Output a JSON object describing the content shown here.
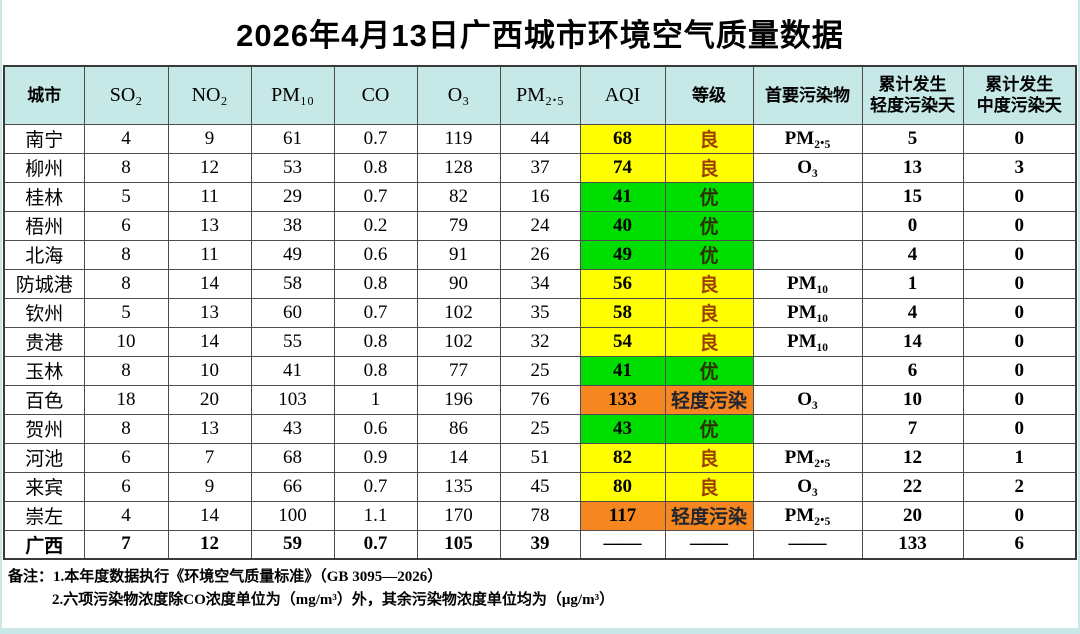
{
  "title": "2026年4月13日广西城市环境空气质量数据",
  "table": {
    "columns": [
      "城市",
      "SO₂",
      "NO₂",
      "PM₁₀",
      "CO",
      "O₃",
      "PM₂.₅",
      "AQI",
      "等级",
      "首要污染物",
      "累计发生\n轻度污染天",
      "累计发生\n中度污染天"
    ],
    "rows": [
      {
        "city": "南宁",
        "so2": "4",
        "no2": "9",
        "pm10": "61",
        "co": "0.7",
        "o3": "119",
        "pm25": "44",
        "aqi": "68",
        "grade": "良",
        "grade_type": "liang",
        "primary": "PM₂.₅",
        "light_days": "5",
        "medium_days": "0"
      },
      {
        "city": "柳州",
        "so2": "8",
        "no2": "12",
        "pm10": "53",
        "co": "0.8",
        "o3": "128",
        "pm25": "37",
        "aqi": "74",
        "grade": "良",
        "grade_type": "liang",
        "primary": "O₃",
        "light_days": "13",
        "medium_days": "3"
      },
      {
        "city": "桂林",
        "so2": "5",
        "no2": "11",
        "pm10": "29",
        "co": "0.7",
        "o3": "82",
        "pm25": "16",
        "aqi": "41",
        "grade": "优",
        "grade_type": "you",
        "primary": "",
        "light_days": "15",
        "medium_days": "0"
      },
      {
        "city": "梧州",
        "so2": "6",
        "no2": "13",
        "pm10": "38",
        "co": "0.2",
        "o3": "79",
        "pm25": "24",
        "aqi": "40",
        "grade": "优",
        "grade_type": "you",
        "primary": "",
        "light_days": "0",
        "medium_days": "0"
      },
      {
        "city": "北海",
        "so2": "8",
        "no2": "11",
        "pm10": "49",
        "co": "0.6",
        "o3": "91",
        "pm25": "26",
        "aqi": "49",
        "grade": "优",
        "grade_type": "you",
        "primary": "",
        "light_days": "4",
        "medium_days": "0"
      },
      {
        "city": "防城港",
        "so2": "8",
        "no2": "14",
        "pm10": "58",
        "co": "0.8",
        "o3": "90",
        "pm25": "34",
        "aqi": "56",
        "grade": "良",
        "grade_type": "liang",
        "primary": "PM₁₀",
        "light_days": "1",
        "medium_days": "0"
      },
      {
        "city": "钦州",
        "so2": "5",
        "no2": "13",
        "pm10": "60",
        "co": "0.7",
        "o3": "102",
        "pm25": "35",
        "aqi": "58",
        "grade": "良",
        "grade_type": "liang",
        "primary": "PM₁₀",
        "light_days": "4",
        "medium_days": "0"
      },
      {
        "city": "贵港",
        "so2": "10",
        "no2": "14",
        "pm10": "55",
        "co": "0.8",
        "o3": "102",
        "pm25": "32",
        "aqi": "54",
        "grade": "良",
        "grade_type": "liang",
        "primary": "PM₁₀",
        "light_days": "14",
        "medium_days": "0"
      },
      {
        "city": "玉林",
        "so2": "8",
        "no2": "10",
        "pm10": "41",
        "co": "0.8",
        "o3": "77",
        "pm25": "25",
        "aqi": "41",
        "grade": "优",
        "grade_type": "you",
        "primary": "",
        "light_days": "6",
        "medium_days": "0"
      },
      {
        "city": "百色",
        "so2": "18",
        "no2": "20",
        "pm10": "103",
        "co": "1",
        "o3": "196",
        "pm25": "76",
        "aqi": "133",
        "grade": "轻度污染",
        "grade_type": "qingdu",
        "primary": "O₃",
        "light_days": "10",
        "medium_days": "0"
      },
      {
        "city": "贺州",
        "so2": "8",
        "no2": "13",
        "pm10": "43",
        "co": "0.6",
        "o3": "86",
        "pm25": "25",
        "aqi": "43",
        "grade": "优",
        "grade_type": "you",
        "primary": "",
        "light_days": "7",
        "medium_days": "0"
      },
      {
        "city": "河池",
        "so2": "6",
        "no2": "7",
        "pm10": "68",
        "co": "0.9",
        "o3": "14",
        "pm25": "51",
        "aqi": "82",
        "grade": "良",
        "grade_type": "liang",
        "primary": "PM₂.₅",
        "light_days": "12",
        "medium_days": "1"
      },
      {
        "city": "来宾",
        "so2": "6",
        "no2": "9",
        "pm10": "66",
        "co": "0.7",
        "o3": "135",
        "pm25": "45",
        "aqi": "80",
        "grade": "良",
        "grade_type": "liang",
        "primary": "O₃",
        "light_days": "22",
        "medium_days": "2"
      },
      {
        "city": "崇左",
        "so2": "4",
        "no2": "14",
        "pm10": "100",
        "co": "1.1",
        "o3": "170",
        "pm25": "78",
        "aqi": "117",
        "grade": "轻度污染",
        "grade_type": "qingdu",
        "primary": "PM₂.₅",
        "light_days": "20",
        "medium_days": "0"
      },
      {
        "city": "广西",
        "so2": "7",
        "no2": "12",
        "pm10": "59",
        "co": "0.7",
        "o3": "105",
        "pm25": "39",
        "aqi": "——",
        "grade": "——",
        "grade_type": "none",
        "primary": "——",
        "light_days": "133",
        "medium_days": "6",
        "summary": true
      }
    ]
  },
  "grade_colors": {
    "you": {
      "bg": "#00dd00",
      "fg": "#2f2f00"
    },
    "liang": {
      "bg": "#ffff00",
      "fg": "#9c3f00"
    },
    "qingdu": {
      "bg": "#f6861f",
      "fg": "#20242e"
    },
    "none": {
      "bg": "",
      "fg": ""
    }
  },
  "header_bg": "#c6e9e7",
  "notes": {
    "label": "备注：",
    "line1": "1.本年度数据执行《环境空气质量标准》（GB 3095—2026）",
    "line2": "2.六项污染物浓度除CO浓度单位为（mg/m³）外，其余污染物浓度单位均为（μg/m³）"
  }
}
